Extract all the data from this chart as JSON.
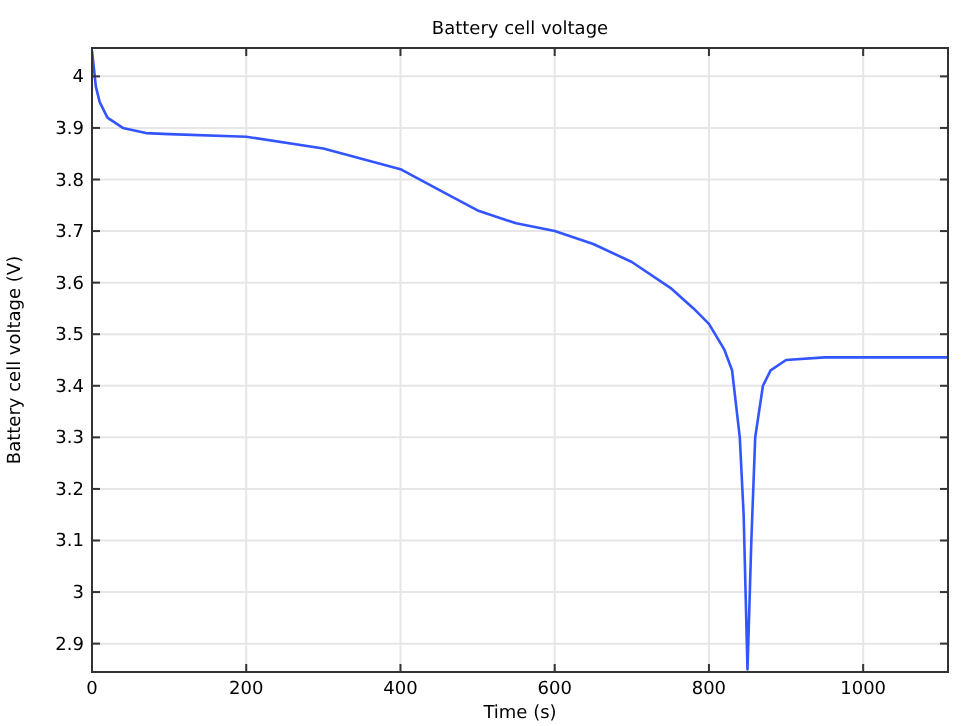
{
  "chart_data": {
    "type": "line",
    "title": "Battery cell voltage",
    "xlabel": "Time (s)",
    "ylabel": "Battery cell voltage (V)",
    "xlim": [
      0,
      1110
    ],
    "ylim": [
      2.845,
      4.055
    ],
    "xticks": [
      0,
      200,
      400,
      600,
      800,
      1000
    ],
    "yticks": [
      2.9,
      3,
      3.1,
      3.2,
      3.3,
      3.4,
      3.5,
      3.6,
      3.7,
      3.8,
      3.9,
      4
    ],
    "grid": true,
    "series": [
      {
        "color": "#3355ff",
        "x": [
          0,
          5,
          10,
          20,
          40,
          70,
          100,
          200,
          300,
          400,
          450,
          500,
          550,
          600,
          650,
          700,
          750,
          780,
          800,
          820,
          830,
          840,
          845,
          850,
          855,
          860,
          870,
          880,
          900,
          950,
          1000,
          1110
        ],
        "values": [
          4.05,
          3.98,
          3.95,
          3.92,
          3.9,
          3.89,
          3.888,
          3.883,
          3.86,
          3.82,
          3.78,
          3.74,
          3.715,
          3.7,
          3.675,
          3.64,
          3.59,
          3.55,
          3.52,
          3.47,
          3.43,
          3.3,
          3.15,
          2.85,
          3.1,
          3.3,
          3.4,
          3.43,
          3.45,
          3.455,
          3.455,
          3.455
        ]
      }
    ]
  }
}
